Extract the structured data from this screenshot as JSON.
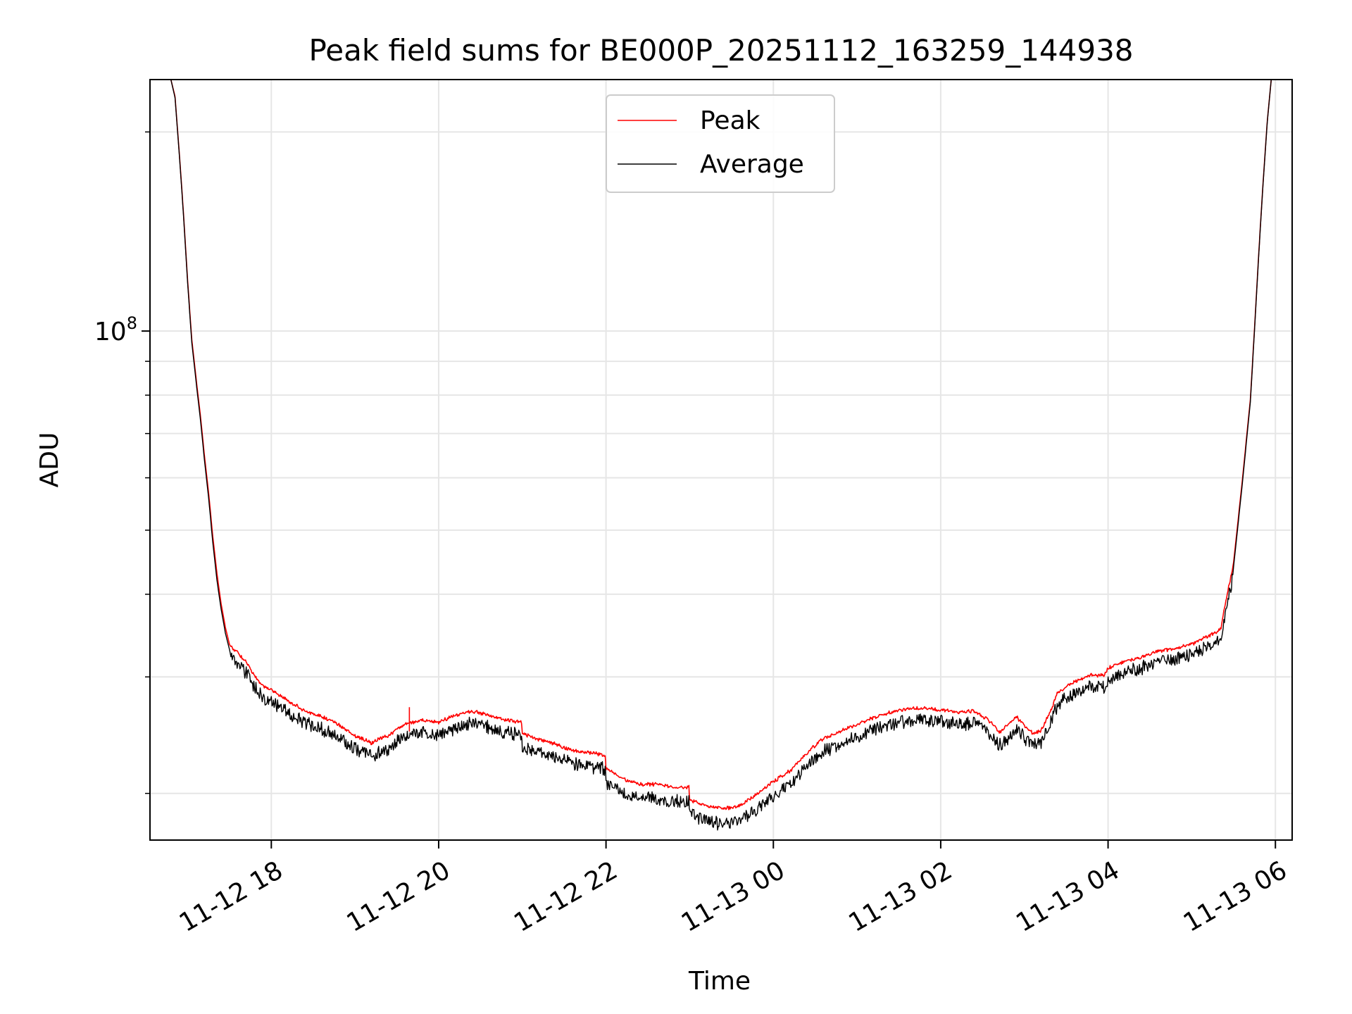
{
  "chart_data": {
    "type": "line",
    "title": "Peak field sums for BE000P_20251112_163259_144938",
    "xlabel": "Time",
    "ylabel": "ADU",
    "y_scale": "log",
    "y_major_ticks": [
      {
        "value": 100000000,
        "base": "10",
        "exp": "8"
      }
    ],
    "y_minor_ticks": [
      20000000,
      30000000,
      40000000,
      50000000,
      60000000,
      70000000,
      80000000,
      90000000,
      200000000
    ],
    "ylim": [
      17000000,
      240000000
    ],
    "x_unit": "hours since 11-12 00:00",
    "xlim": [
      16.55,
      30.2
    ],
    "x_tick_labels": [
      {
        "hour": 18,
        "label": "11-12 18"
      },
      {
        "hour": 20,
        "label": "11-12 20"
      },
      {
        "hour": 22,
        "label": "11-12 22"
      },
      {
        "hour": 24,
        "label": "11-13 00"
      },
      {
        "hour": 26,
        "label": "11-13 02"
      },
      {
        "hour": 28,
        "label": "11-13 04"
      },
      {
        "hour": 30,
        "label": "11-13 06"
      }
    ],
    "legend": {
      "position": "upper center",
      "entries": [
        {
          "label": "Peak",
          "color": "#ff0000"
        },
        {
          "label": "Average",
          "color": "#000000"
        }
      ]
    },
    "grid": true,
    "spike": {
      "x": 19.65,
      "y": 27000000
    },
    "series": [
      {
        "name": "Average",
        "color": "#000000",
        "x": [
          16.55,
          16.8,
          16.85,
          16.9,
          16.95,
          17.0,
          17.05,
          17.1,
          17.15,
          17.2,
          17.25,
          17.3,
          17.35,
          17.4,
          17.45,
          17.5,
          17.55,
          17.6,
          17.7,
          17.8,
          17.9,
          18.0,
          18.2,
          18.4,
          18.6,
          18.8,
          19.0,
          19.2,
          19.3,
          19.4,
          19.5,
          19.6,
          19.8,
          20.0,
          20.2,
          20.4,
          20.6,
          20.8,
          20.99,
          21.0,
          21.2,
          21.4,
          21.6,
          21.8,
          21.99,
          22.0,
          22.2,
          22.4,
          22.6,
          22.8,
          22.99,
          23.0,
          23.2,
          23.4,
          23.6,
          23.8,
          24.0,
          24.2,
          24.4,
          24.6,
          24.8,
          25.0,
          25.2,
          25.4,
          25.6,
          25.8,
          26.0,
          26.2,
          26.4,
          26.6,
          26.7,
          26.8,
          26.9,
          27.0,
          27.1,
          27.2,
          27.3,
          27.4,
          27.6,
          27.8,
          27.95,
          28.0,
          28.2,
          28.4,
          28.6,
          28.8,
          29.0,
          29.2,
          29.3,
          29.35,
          29.4,
          29.5,
          29.6,
          29.7,
          29.75,
          29.8,
          29.85,
          29.9,
          29.95,
          30.0,
          30.2
        ],
        "y": [
          240000000,
          240000000,
          225000000,
          185000000,
          150000000,
          118000000,
          96000000,
          84000000,
          74000000,
          64000000,
          56000000,
          48000000,
          42000000,
          38000000,
          35000000,
          33000000,
          32500000,
          32000000,
          31000000,
          29500000,
          28500000,
          28000000,
          27000000,
          26000000,
          25500000,
          24800000,
          23800000,
          23200000,
          23600000,
          23800000,
          24400000,
          24800000,
          25200000,
          25000000,
          25600000,
          26000000,
          25600000,
          25200000,
          25000000,
          24000000,
          23500000,
          23100000,
          22600000,
          22400000,
          22200000,
          21200000,
          20400000,
          20000000,
          20000000,
          19800000,
          19800000,
          18900000,
          18500000,
          18300000,
          18500000,
          19300000,
          20200000,
          21000000,
          22400000,
          23600000,
          24200000,
          24800000,
          25400000,
          25900000,
          26200000,
          26300000,
          26100000,
          25900000,
          26000000,
          25000000,
          24100000,
          24700000,
          25500000,
          24700000,
          24000000,
          24300000,
          25800000,
          27800000,
          28900000,
          29600000,
          29500000,
          30300000,
          31000000,
          31500000,
          32200000,
          32500000,
          33000000,
          34000000,
          34400000,
          35000000,
          38000000,
          44000000,
          58000000,
          78000000,
          100000000,
          130000000,
          165000000,
          205000000,
          240000000,
          240000000,
          240000000
        ]
      },
      {
        "name": "Peak",
        "color": "#ff0000",
        "x": [
          16.55,
          16.8,
          16.85,
          16.9,
          16.95,
          17.0,
          17.05,
          17.1,
          17.15,
          17.2,
          17.25,
          17.3,
          17.35,
          17.4,
          17.45,
          17.5,
          17.55,
          17.6,
          17.7,
          17.8,
          17.9,
          18.0,
          18.2,
          18.4,
          18.6,
          18.8,
          19.0,
          19.2,
          19.3,
          19.4,
          19.5,
          19.6,
          19.8,
          20.0,
          20.2,
          20.4,
          20.6,
          20.8,
          20.99,
          21.0,
          21.2,
          21.4,
          21.6,
          21.8,
          21.99,
          22.0,
          22.2,
          22.4,
          22.6,
          22.8,
          22.99,
          23.0,
          23.2,
          23.4,
          23.6,
          23.8,
          24.0,
          24.2,
          24.4,
          24.6,
          24.8,
          25.0,
          25.2,
          25.4,
          25.6,
          25.8,
          26.0,
          26.2,
          26.4,
          26.6,
          26.7,
          26.8,
          26.9,
          27.0,
          27.1,
          27.2,
          27.3,
          27.4,
          27.6,
          27.8,
          27.95,
          28.0,
          28.2,
          28.4,
          28.6,
          28.8,
          29.0,
          29.2,
          29.3,
          29.35,
          29.4,
          29.5,
          29.6,
          29.7,
          29.75,
          29.8,
          29.85,
          29.9,
          29.95,
          30.0,
          30.2
        ],
        "y": [
          240000000,
          240000000,
          226000000,
          186000000,
          151000000,
          119000000,
          97000000,
          85000000,
          75000000,
          65000000,
          57000000,
          49000000,
          43000000,
          38700000,
          35700000,
          33600000,
          33100000,
          32700000,
          31700000,
          30200000,
          29200000,
          28700000,
          27700000,
          26700000,
          26200000,
          25500000,
          24500000,
          23900000,
          24300000,
          24500000,
          25100000,
          25500000,
          25900000,
          25700000,
          26300000,
          26700000,
          26300000,
          25900000,
          25700000,
          24700000,
          24200000,
          23800000,
          23300000,
          23100000,
          22900000,
          21900000,
          21100000,
          20700000,
          20700000,
          20500000,
          20500000,
          19600000,
          19200000,
          19000000,
          19200000,
          20000000,
          20900000,
          21700000,
          23100000,
          24300000,
          24900000,
          25500000,
          26100000,
          26600000,
          26900000,
          27000000,
          26800000,
          26600000,
          26700000,
          25700000,
          24800000,
          25400000,
          26200000,
          25400000,
          24700000,
          25000000,
          26500000,
          28500000,
          29600000,
          30300000,
          30200000,
          31000000,
          31700000,
          32200000,
          32900000,
          33200000,
          33700000,
          34700000,
          35100000,
          35700000,
          38700000,
          44700000,
          58700000,
          78700000,
          100700000,
          130700000,
          165700000,
          205700000,
          240000000,
          240000000,
          240000000
        ]
      }
    ]
  }
}
